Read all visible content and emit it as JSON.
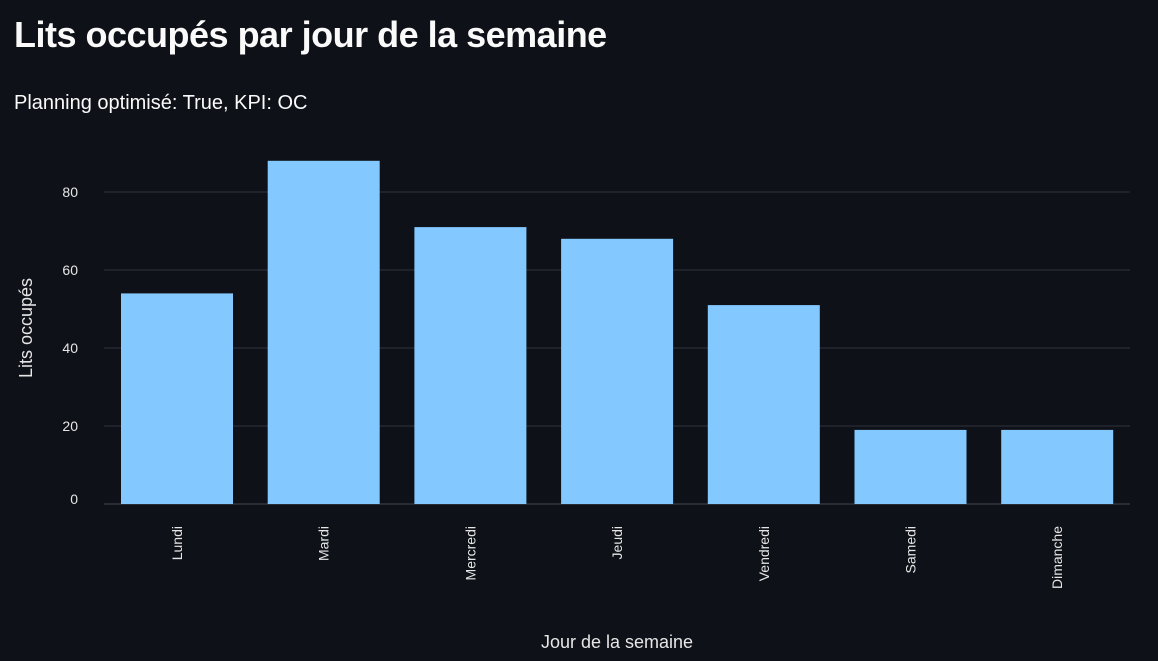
{
  "header": {
    "title": "Lits occupés par jour de la semaine",
    "subtitle": "Planning optimisé: True, KPI: OC"
  },
  "colors": {
    "background": "#0e1117",
    "bar": "#83c9ff",
    "grid": "#31333f",
    "text": "#fafafa"
  },
  "chart_data": {
    "type": "bar",
    "categories": [
      "Lundi",
      "Mardi",
      "Mercredi",
      "Jeudi",
      "Vendredi",
      "Samedi",
      "Dimanche"
    ],
    "values": [
      54,
      88,
      71,
      68,
      51,
      19,
      19
    ],
    "xlabel": "Jour de la semaine",
    "ylabel": "Lits occupés",
    "ylim": [
      0,
      90
    ],
    "yticks": [
      0,
      20,
      40,
      60,
      80
    ],
    "grid": true,
    "legend": "none"
  }
}
